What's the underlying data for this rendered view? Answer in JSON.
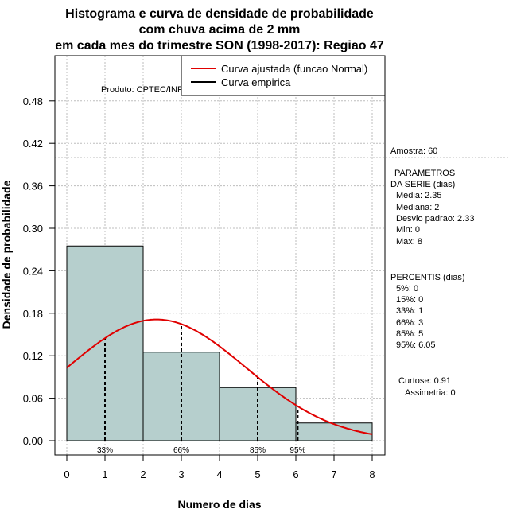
{
  "chart_data": {
    "type": "bar",
    "title": [
      "Histograma e curva de densidade de probabilidade",
      "com chuva acima de 2 mm",
      "em cada mes do trimestre SON (1998-2017): Regiao 47"
    ],
    "xlabel": "Numero de dias",
    "ylabel": "Densidade de probabilidade",
    "xlim": [
      0,
      8
    ],
    "ylim": [
      0,
      0.54
    ],
    "xticks": [
      0,
      1,
      2,
      3,
      4,
      5,
      6,
      7,
      8
    ],
    "yticks": [
      0.0,
      0.06,
      0.12,
      0.18,
      0.24,
      0.3,
      0.36,
      0.42,
      0.48
    ],
    "ytick_labels": [
      "0.00",
      "0.06",
      "0.12",
      "0.18",
      "0.24",
      "0.30",
      "0.36",
      "0.42",
      "0.48"
    ],
    "grid": true,
    "bins": [
      {
        "from": 0,
        "to": 2,
        "density": 0.275
      },
      {
        "from": 2,
        "to": 4,
        "density": 0.125
      },
      {
        "from": 4,
        "to": 6,
        "density": 0.075
      },
      {
        "from": 6,
        "to": 8,
        "density": 0.025
      }
    ],
    "fitted_curve": {
      "name": "Curva ajustada (funcao Normal)",
      "mean": 2.35,
      "sd": 2.33,
      "color": "#e00000"
    },
    "empirical_curve": {
      "name": "Curva empirica",
      "color": "#000000"
    },
    "hline": 0.4,
    "percentile_lines": [
      {
        "x": 1,
        "label": "33%"
      },
      {
        "x": 3,
        "label": "66%"
      },
      {
        "x": 5,
        "label": "85%"
      },
      {
        "x": 6.05,
        "label": "95%"
      }
    ],
    "bar_color": "#b6cfcd",
    "watermark": "Produto: CPTEC/INPE"
  },
  "stats": {
    "sample": "Amostra: 60",
    "params_title_1": "PARAMETROS",
    "params_title_2": "DA SERIE (dias)",
    "media": "Media: 2.35",
    "mediana": "Mediana: 2",
    "desvio": "Desvio padrao: 2.33",
    "min": "Min: 0",
    "max": "Max: 8",
    "percentis_title": "PERCENTIS (dias)",
    "p5": "5%: 0",
    "p15": "15%: 0",
    "p33": "33%: 1",
    "p66": "66%: 3",
    "p85": "85%: 5",
    "p95": "95%: 6.05",
    "curtose": "Curtose: 0.91",
    "assimetria": "Assimetria: 0"
  }
}
